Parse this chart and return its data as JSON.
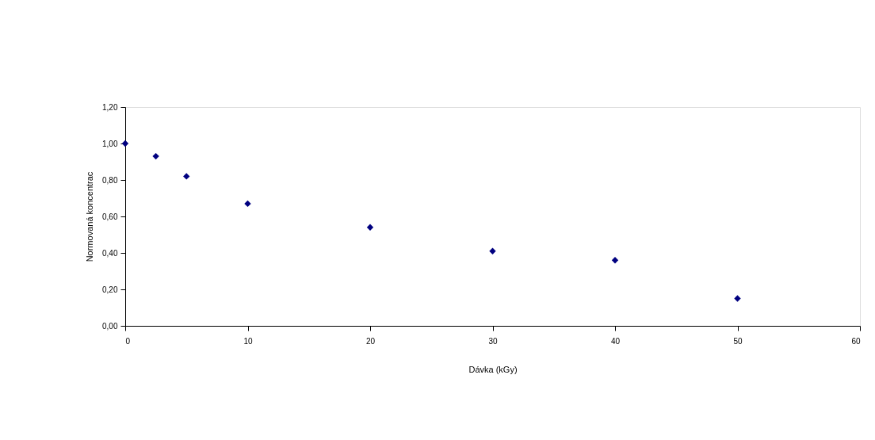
{
  "chart_data": {
    "type": "scatter",
    "xlabel": "Dávka (kGy)",
    "ylabel": "Normovaná koncentrac",
    "x": [
      0,
      2.5,
      5,
      10,
      20,
      30,
      40,
      50
    ],
    "series": [
      {
        "color": "#000080",
        "values": [
          1.0,
          0.93,
          0.82,
          0.67,
          0.54,
          0.41,
          0.36,
          0.15
        ]
      }
    ],
    "xlim": [
      0,
      60
    ],
    "xticks": [
      0,
      10,
      20,
      30,
      40,
      50,
      60
    ],
    "ylim": [
      0,
      1.2
    ],
    "yticks": [
      {
        "value": 0,
        "label": "0,00"
      },
      {
        "value": 0.2,
        "label": "0,20"
      },
      {
        "value": 0.4,
        "label": "0,40"
      },
      {
        "value": 0.6,
        "label": "0,60"
      },
      {
        "value": 0.8,
        "label": "0,80"
      },
      {
        "value": 1.0,
        "label": "1,00"
      },
      {
        "value": 1.2,
        "label": "1,20"
      }
    ],
    "grid": false,
    "legend": false,
    "marker": "diamond"
  }
}
